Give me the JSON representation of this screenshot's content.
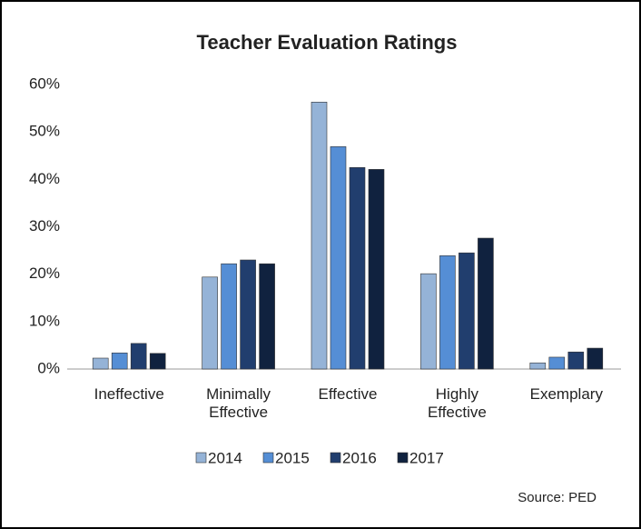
{
  "chart_data": {
    "type": "bar",
    "title": "Teacher Evaluation Ratings",
    "categories": [
      "Ineffective",
      "Minimally Effective",
      "Effective",
      "Highly Effective",
      "Exemplary"
    ],
    "series": [
      {
        "name": "2014",
        "color": "#95b3d7",
        "values": [
          2.3,
          19.4,
          56.3,
          20.1,
          1.3
        ]
      },
      {
        "name": "2015",
        "color": "#558ed5",
        "values": [
          3.4,
          22.2,
          46.9,
          23.9,
          2.5
        ]
      },
      {
        "name": "2016",
        "color": "#213e6e",
        "values": [
          5.4,
          23.0,
          42.5,
          24.5,
          3.6
        ]
      },
      {
        "name": "2017",
        "color": "#10223f",
        "values": [
          3.3,
          22.2,
          42.1,
          27.6,
          4.4
        ]
      }
    ],
    "ylim": [
      0,
      60
    ],
    "yticks": [
      {
        "value": 0,
        "label": "0%"
      },
      {
        "value": 10,
        "label": "10%"
      },
      {
        "value": 20,
        "label": "20%"
      },
      {
        "value": 30,
        "label": "30%"
      },
      {
        "value": 40,
        "label": "40%"
      },
      {
        "value": 50,
        "label": "50%"
      },
      {
        "value": 60,
        "label": "60%"
      }
    ],
    "grid": false,
    "legend": "bottom",
    "source": "Source: PED"
  }
}
